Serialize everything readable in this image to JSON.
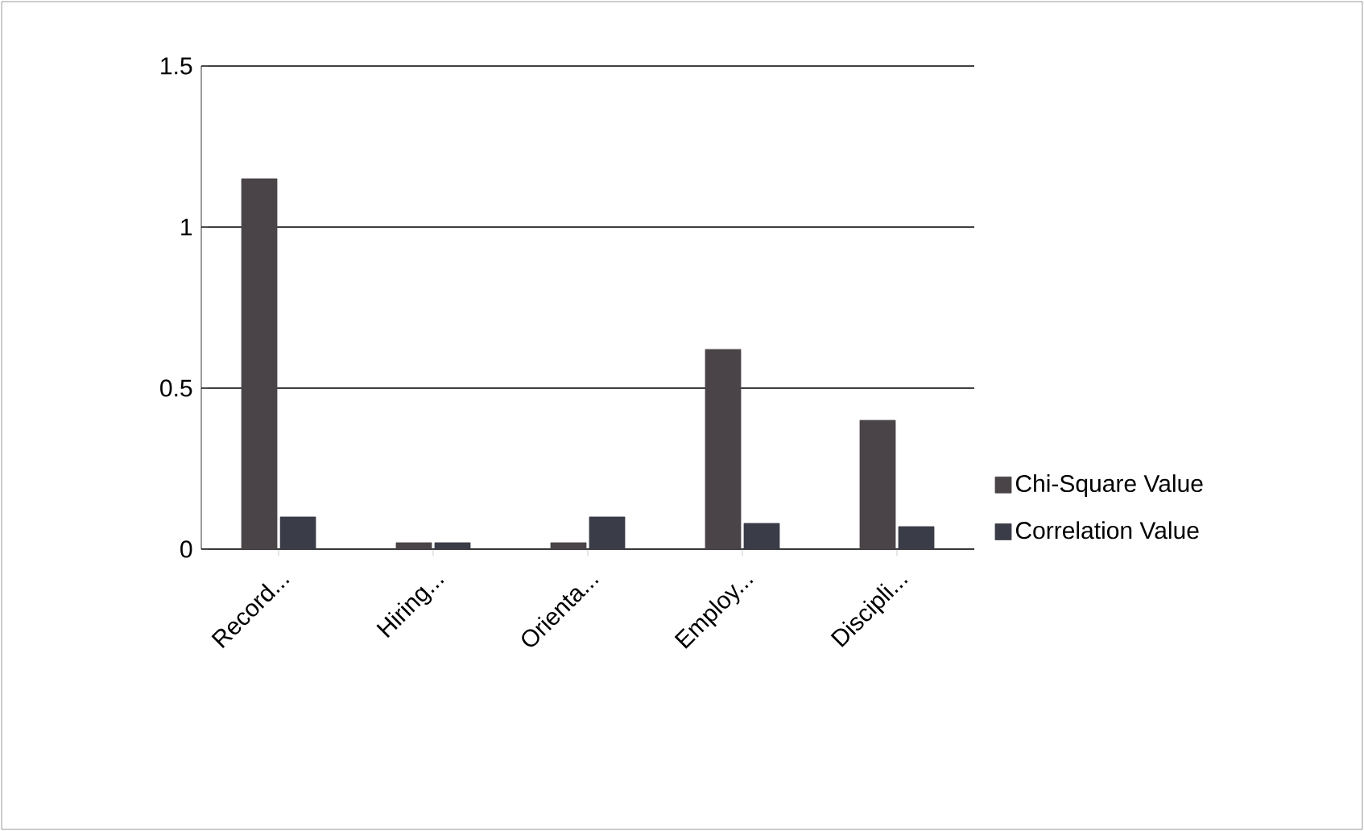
{
  "chart_data": {
    "type": "bar",
    "categories": [
      "Record...",
      "Hiring...",
      "Orienta...",
      "Employ...",
      "Discipli..."
    ],
    "series": [
      {
        "name": "Chi-Square Value",
        "color": "#4a4448",
        "values": [
          1.15,
          0.02,
          0.02,
          0.62,
          0.4
        ]
      },
      {
        "name": "Correlation Value",
        "color": "#3a3c48",
        "values": [
          0.1,
          0.02,
          0.1,
          0.08,
          0.07
        ]
      }
    ],
    "ylim": [
      0,
      1.5
    ],
    "yticks": [
      0,
      0.5,
      1,
      1.5
    ],
    "grid": "y",
    "legend": "bottom right"
  }
}
